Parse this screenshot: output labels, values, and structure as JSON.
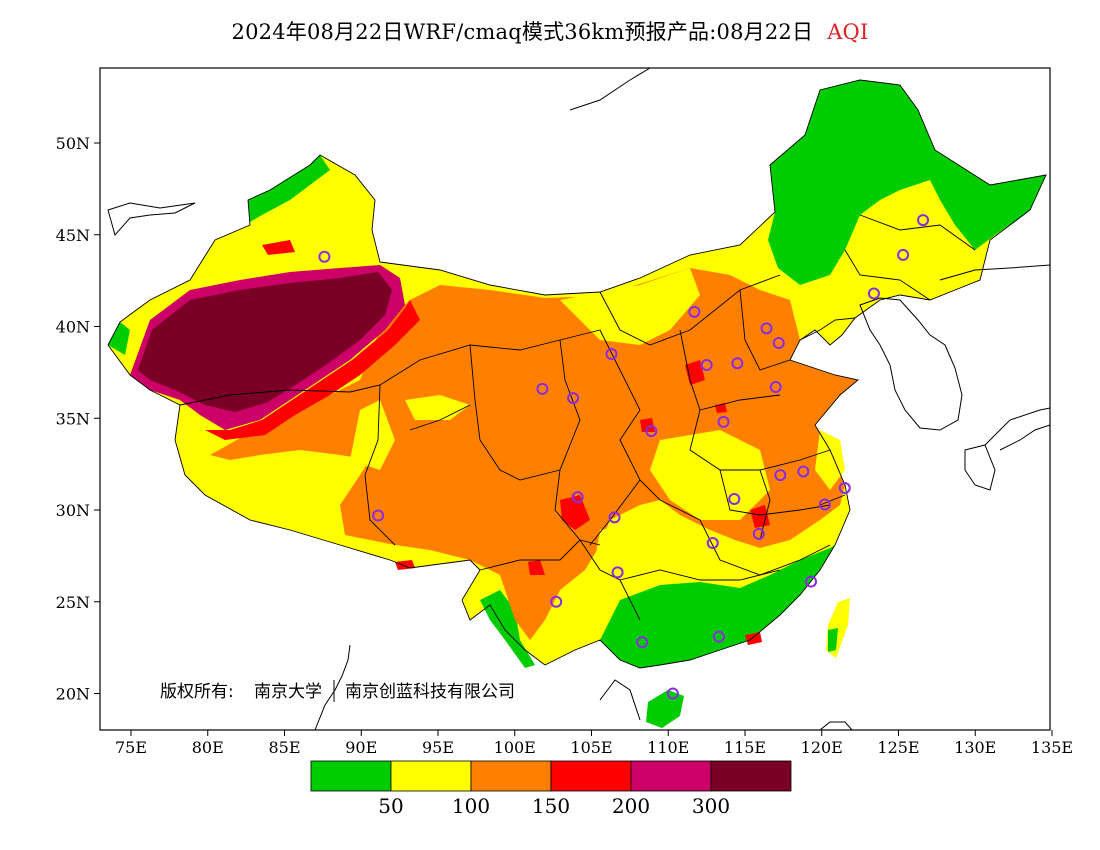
{
  "title": {
    "main": "2024年08月22日WRF/cmaq模式36km预报产品:08月22日",
    "variable": "AQI",
    "variable_color": "#e02020"
  },
  "credit": {
    "prefix": "版权所有:",
    "org1": "南京大学",
    "org2": "南京创蓝科技有限公司"
  },
  "axes": {
    "lon_labels": [
      "75E",
      "80E",
      "85E",
      "90E",
      "95E",
      "100E",
      "105E",
      "110E",
      "115E",
      "120E",
      "125E",
      "130E",
      "135E"
    ],
    "lat_labels": [
      "50N",
      "45N",
      "40N",
      "35N",
      "30N",
      "25N",
      "20N"
    ]
  },
  "legend": {
    "colors": [
      "#00cc00",
      "#ffff00",
      "#ff8000",
      "#ff0000",
      "#cc0066",
      "#7a0026"
    ],
    "labels": [
      "50",
      "100",
      "150",
      "200",
      "300"
    ]
  },
  "palette": {
    "good": "#00cc00",
    "moderate": "#ffff00",
    "sensitive": "#ff8000",
    "unhealthy": "#ff0000",
    "very_unhealthy": "#cc0066",
    "hazardous": "#7a0026",
    "station_marker": "#8a2be2"
  },
  "stations": [
    {
      "lon": 87.6,
      "lat": 43.8
    },
    {
      "lon": 91.1,
      "lat": 29.7
    },
    {
      "lon": 101.8,
      "lat": 36.6
    },
    {
      "lon": 103.8,
      "lat": 36.1
    },
    {
      "lon": 106.3,
      "lat": 38.5
    },
    {
      "lon": 111.7,
      "lat": 40.8
    },
    {
      "lon": 112.5,
      "lat": 37.9
    },
    {
      "lon": 114.5,
      "lat": 38.0
    },
    {
      "lon": 116.4,
      "lat": 39.9
    },
    {
      "lon": 117.2,
      "lat": 39.1
    },
    {
      "lon": 117.0,
      "lat": 36.7
    },
    {
      "lon": 113.6,
      "lat": 34.8
    },
    {
      "lon": 108.9,
      "lat": 34.3
    },
    {
      "lon": 104.1,
      "lat": 30.7
    },
    {
      "lon": 106.5,
      "lat": 29.6
    },
    {
      "lon": 102.7,
      "lat": 25.0
    },
    {
      "lon": 106.7,
      "lat": 26.6
    },
    {
      "lon": 114.3,
      "lat": 30.6
    },
    {
      "lon": 117.3,
      "lat": 31.9
    },
    {
      "lon": 118.8,
      "lat": 32.1
    },
    {
      "lon": 120.2,
      "lat": 30.3
    },
    {
      "lon": 121.5,
      "lat": 31.2
    },
    {
      "lon": 112.9,
      "lat": 28.2
    },
    {
      "lon": 115.9,
      "lat": 28.7
    },
    {
      "lon": 119.3,
      "lat": 26.1
    },
    {
      "lon": 113.3,
      "lat": 23.1
    },
    {
      "lon": 108.3,
      "lat": 22.8
    },
    {
      "lon": 110.3,
      "lat": 20.0
    },
    {
      "lon": 123.4,
      "lat": 41.8
    },
    {
      "lon": 125.3,
      "lat": 43.9
    },
    {
      "lon": 126.6,
      "lat": 45.8
    }
  ]
}
